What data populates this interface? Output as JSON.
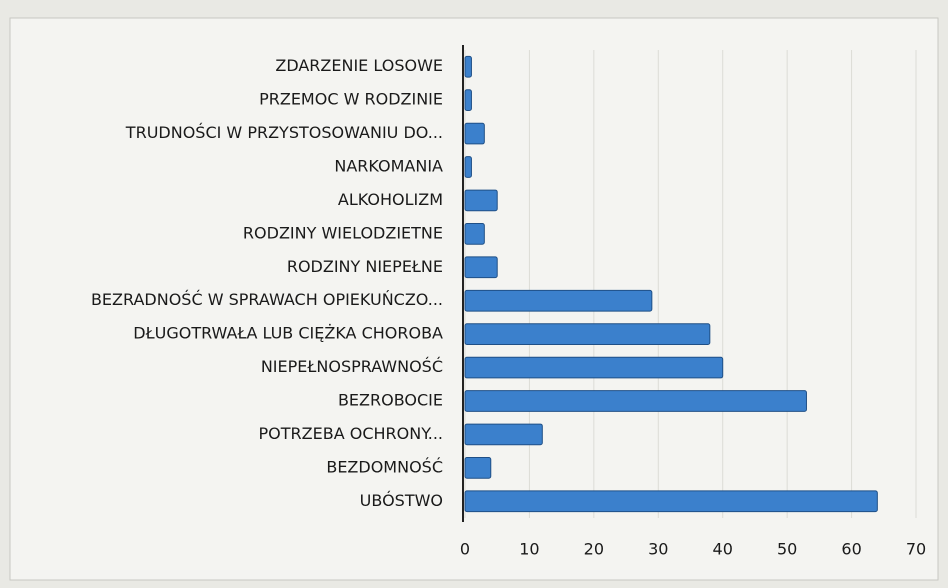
{
  "chart_data": {
    "type": "barh",
    "categories": [
      "ZDARZENIE LOSOWE",
      "PRZEMOC W RODZINIE",
      "TRUDNOŚCI W PRZYSTOSOWANIU DO...",
      "NARKOMANIA",
      "ALKOHOLIZM",
      "RODZINY WIELODZIETNE",
      "RODZINY NIEPEŁNE",
      "BEZRADNOŚĆ W SPRAWACH OPIEKUŃCZO...",
      "DŁUGOTRWAŁA LUB CIĘŻKA CHOROBA",
      "NIEPEŁNOSPRAWNOŚĆ",
      "BEZROBOCIE",
      "POTRZEBA OCHRONY...",
      "BEZDOMNOŚĆ",
      "UBÓSTWO"
    ],
    "values": [
      1,
      1,
      3,
      1,
      5,
      3,
      5,
      29,
      38,
      40,
      53,
      12,
      4,
      64
    ],
    "color": "#3b80cc",
    "xlim": [
      0,
      70
    ],
    "xticks": [
      0,
      10,
      20,
      30,
      40,
      50,
      60,
      70
    ],
    "grid": true
  }
}
